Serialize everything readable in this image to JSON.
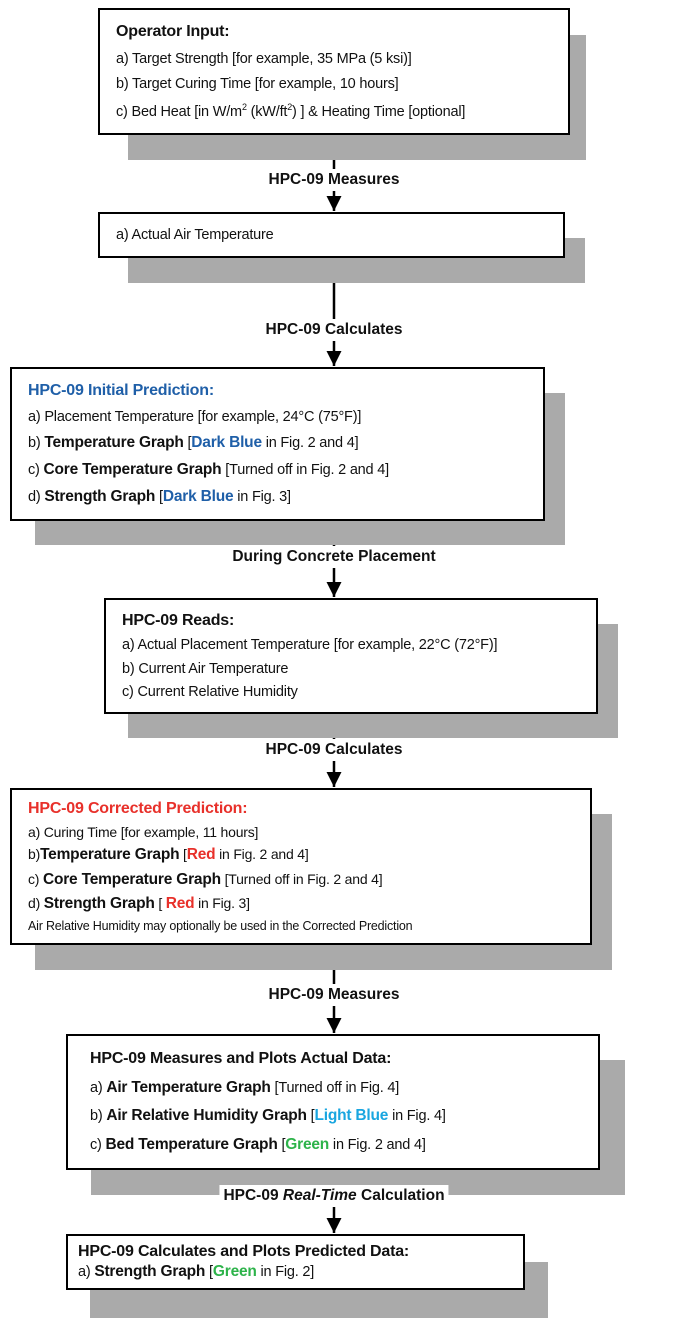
{
  "steps": [
    {
      "title": "Operator Input:",
      "lines": [
        [
          "a) Target Strength [for example, 35 MPa (5 ksi)]"
        ],
        [
          "b) Target Curing Time [for example, 10 hours]"
        ],
        [
          "c) Bed Heat [in W/m",
          "2",
          " (kW/ft",
          "2",
          ") ] & Heating Time [optional]"
        ]
      ]
    },
    {
      "lines": [
        [
          "a) Actual Air Temperature"
        ]
      ]
    },
    {
      "title": "HPC-09 Initial Prediction:",
      "lines": [
        [
          "a) Placement Temperature [for example, 24°C (75°F)]"
        ],
        [
          "b) ",
          "Temperature Graph",
          " [",
          "Dark Blue",
          " in Fig. 2 and 4]"
        ],
        [
          "c) ",
          "Core Temperature Graph",
          " [Turned off in Fig. 2 and 4]"
        ],
        [
          "d) ",
          "Strength Graph",
          " [",
          "Dark Blue",
          " in Fig. 3]"
        ]
      ]
    },
    {
      "title": "HPC-09 Reads:",
      "lines": [
        [
          "a) Actual Placement Temperature [for example, 22°C (72°F)]"
        ],
        [
          "b) Current Air Temperature"
        ],
        [
          "c) Current Relative Humidity"
        ]
      ]
    },
    {
      "title": "HPC-09 Corrected Prediction:",
      "lines": [
        [
          "a) Curing Time [for example, 11 hours]"
        ],
        [
          "b)",
          "Temperature Graph",
          " [",
          "Red",
          " in Fig. 2 and 4]"
        ],
        [
          "c) ",
          "Core Temperature Graph",
          " [Turned off in Fig. 2 and 4]"
        ],
        [
          "d) ",
          "Strength Graph",
          " [ ",
          "Red",
          " in Fig. 3]"
        ],
        [
          "Air Relative Humidity may optionally be used in the Corrected Prediction"
        ]
      ]
    },
    {
      "title": "HPC-09 Measures and Plots Actual Data:",
      "lines": [
        [
          "a) ",
          "Air Temperature Graph",
          " [Turned off in Fig. 4]"
        ],
        [
          "b) ",
          "Air Relative Humidity Graph",
          " [",
          "Light Blue",
          " in Fig. 4]"
        ],
        [
          "c) ",
          "Bed Temperature Graph",
          " [",
          "Green",
          " in Fig. 2 and 4]"
        ]
      ]
    },
    {
      "title": "HPC-09 Calculates and Plots Predicted Data:",
      "lines": [
        [
          "a) ",
          "Strength Graph",
          " [",
          "Green",
          " in Fig. 2]"
        ]
      ]
    }
  ],
  "connectors": [
    [
      "HPC-09 Measures"
    ],
    [
      "HPC-09 Calculates"
    ],
    [
      "During Concrete Placement"
    ],
    [
      "HPC-09 Calculates"
    ],
    [
      "HPC-09 Measures"
    ],
    [
      "HPC-09 ",
      "Real-Time",
      " Calculation"
    ]
  ]
}
